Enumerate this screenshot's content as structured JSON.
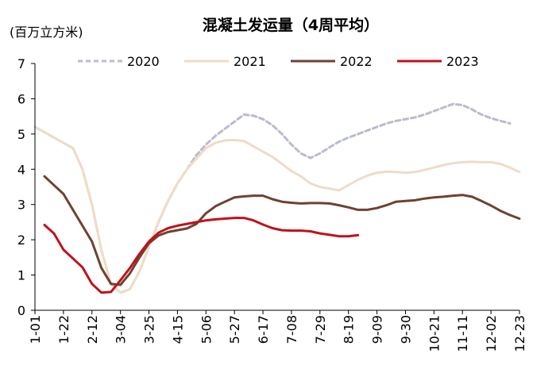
{
  "chart_data": {
    "type": "line",
    "title": "混凝土发运量（4周平均）",
    "ylabel": "(百万立方米)",
    "xlabel": "",
    "ylim": [
      0,
      7
    ],
    "yticks": [
      0,
      1,
      2,
      3,
      4,
      5,
      6,
      7
    ],
    "grid": false,
    "legend_position": "top",
    "categories": [
      "1-01",
      "1-22",
      "2-12",
      "3-04",
      "3-25",
      "4-15",
      "5-06",
      "5-27",
      "6-17",
      "7-08",
      "7-29",
      "8-19",
      "9-09",
      "9-30",
      "10-21",
      "11-11",
      "12-02",
      "12-23"
    ],
    "x_week_range": [
      0,
      51
    ],
    "series": [
      {
        "name": "2020",
        "color": "#b9bccd",
        "dashed": true,
        "x": [
          0,
          1,
          2,
          3,
          4,
          5,
          6,
          7,
          8,
          9,
          10,
          11,
          12,
          13,
          14,
          15,
          16,
          17,
          18,
          19,
          20,
          21,
          22,
          23,
          24,
          25,
          26,
          27,
          28,
          29,
          30,
          31,
          32,
          33,
          34,
          35,
          36,
          37,
          38,
          39,
          40,
          41,
          42,
          43,
          44,
          45,
          46,
          47,
          48,
          49,
          50
        ],
        "values": [
          5.2,
          5.05,
          4.9,
          4.75,
          4.6,
          4.0,
          3.0,
          1.7,
          0.75,
          0.5,
          0.6,
          1.1,
          1.8,
          2.5,
          3.1,
          3.6,
          4.0,
          4.4,
          4.7,
          4.95,
          5.15,
          5.35,
          5.55,
          5.52,
          5.42,
          5.25,
          5.0,
          4.7,
          4.45,
          4.32,
          4.45,
          4.62,
          4.78,
          4.9,
          5.0,
          5.1,
          5.2,
          5.3,
          5.37,
          5.42,
          5.47,
          5.55,
          5.65,
          5.75,
          5.85,
          5.82,
          5.7,
          5.55,
          5.45,
          5.37,
          5.3
        ]
      },
      {
        "name": "2021",
        "color": "#eedcc6",
        "dashed": false,
        "x": [
          0,
          1,
          2,
          3,
          4,
          5,
          6,
          7,
          8,
          9,
          10,
          11,
          12,
          13,
          14,
          15,
          16,
          17,
          18,
          19,
          20,
          21,
          22,
          23,
          24,
          25,
          26,
          27,
          28,
          29,
          30,
          31,
          32,
          33,
          34,
          35,
          36,
          37,
          38,
          39,
          40,
          41,
          42,
          43,
          44,
          45,
          46,
          47,
          48,
          49,
          50,
          51
        ],
        "values": [
          5.2,
          5.05,
          4.9,
          4.75,
          4.6,
          4.0,
          3.0,
          1.7,
          0.75,
          0.5,
          0.6,
          1.1,
          1.8,
          2.5,
          3.1,
          3.6,
          4.0,
          4.3,
          4.6,
          4.75,
          4.82,
          4.83,
          4.8,
          4.65,
          4.5,
          4.35,
          4.15,
          3.95,
          3.8,
          3.6,
          3.5,
          3.45,
          3.4,
          3.55,
          3.7,
          3.82,
          3.9,
          3.93,
          3.92,
          3.9,
          3.92,
          3.98,
          4.05,
          4.12,
          4.17,
          4.2,
          4.21,
          4.2,
          4.2,
          4.15,
          4.05,
          3.92
        ]
      },
      {
        "name": "2022",
        "color": "#6e4230",
        "dashed": false,
        "x": [
          1,
          2,
          3,
          4,
          5,
          6,
          7,
          8,
          9,
          10,
          11,
          12,
          13,
          14,
          15,
          16,
          17,
          18,
          19,
          20,
          21,
          22,
          23,
          24,
          25,
          26,
          27,
          28,
          29,
          30,
          31,
          32,
          33,
          34,
          35,
          36,
          37,
          38,
          39,
          40,
          41,
          42,
          43,
          44,
          45,
          46,
          47,
          48,
          49,
          50,
          51
        ],
        "values": [
          3.8,
          3.55,
          3.3,
          2.85,
          2.4,
          1.95,
          1.2,
          0.75,
          0.72,
          1.05,
          1.5,
          1.9,
          2.12,
          2.22,
          2.27,
          2.32,
          2.45,
          2.75,
          2.95,
          3.08,
          3.2,
          3.23,
          3.25,
          3.25,
          3.15,
          3.08,
          3.05,
          3.03,
          3.04,
          3.04,
          3.03,
          2.98,
          2.92,
          2.85,
          2.85,
          2.9,
          2.98,
          3.08,
          3.1,
          3.12,
          3.17,
          3.2,
          3.22,
          3.25,
          3.27,
          3.22,
          3.1,
          2.97,
          2.82,
          2.7,
          2.6
        ]
      },
      {
        "name": "2023",
        "color": "#c0121b",
        "dashed": false,
        "x": [
          1,
          2,
          3,
          4,
          5,
          6,
          7,
          8,
          9,
          10,
          11,
          12,
          13,
          14,
          15,
          16,
          17,
          18,
          19,
          20,
          21,
          22,
          23,
          24,
          25,
          26,
          27,
          28,
          29,
          30,
          31,
          32,
          33,
          34
        ],
        "values": [
          2.42,
          2.18,
          1.72,
          1.47,
          1.22,
          0.75,
          0.5,
          0.52,
          0.85,
          1.2,
          1.6,
          1.95,
          2.2,
          2.33,
          2.4,
          2.45,
          2.5,
          2.55,
          2.58,
          2.6,
          2.62,
          2.62,
          2.55,
          2.43,
          2.33,
          2.27,
          2.26,
          2.26,
          2.24,
          2.18,
          2.14,
          2.1,
          2.1,
          2.13
        ]
      }
    ]
  }
}
